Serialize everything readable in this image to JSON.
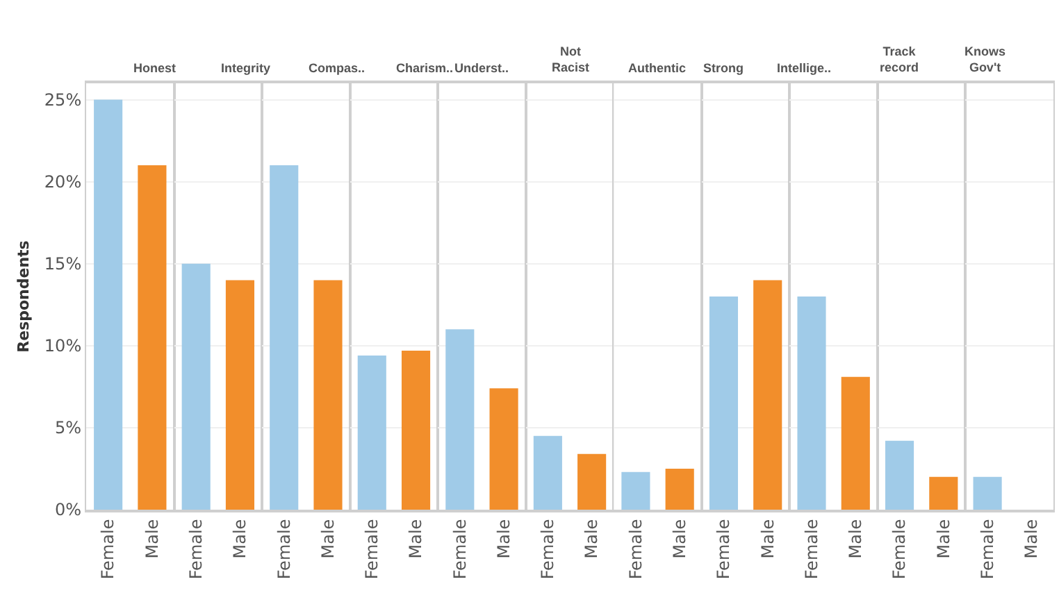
{
  "chart_data": [
    {
      "type": "bar",
      "title": "Honest",
      "ylabel": "Respondents",
      "categories": [
        "Female",
        "Male"
      ],
      "values": [
        25,
        21
      ],
      "colors": [
        "#a0cbe8",
        "#f28e2b"
      ],
      "ylim": [
        0,
        26
      ],
      "yticks": [
        {
          "value": 0,
          "label": "0%"
        },
        {
          "value": 5,
          "label": "5%"
        },
        {
          "value": 10,
          "label": "10%"
        },
        {
          "value": 15,
          "label": "15%"
        },
        {
          "value": 20,
          "label": "20%"
        },
        {
          "value": 25,
          "label": "25%"
        }
      ],
      "grid": "y"
    },
    {
      "type": "bar",
      "title": "Integrity",
      "categories": [
        "Female",
        "Male"
      ],
      "values": [
        15,
        14
      ],
      "colors": [
        "#a0cbe8",
        "#f28e2b"
      ],
      "ylim": [
        0,
        26
      ],
      "yticks": [
        0,
        5,
        10,
        15,
        20,
        25
      ],
      "grid": "y",
      "tick_labels": "x"
    },
    {
      "type": "bar",
      "title": "Compas..",
      "categories": [
        "Female",
        "Male"
      ],
      "values": [
        21,
        14
      ],
      "colors": [
        "#a0cbe8",
        "#f28e2b"
      ],
      "ylim": [
        0,
        26
      ],
      "yticks": [
        0,
        5,
        10,
        15,
        20,
        25
      ],
      "grid": "y",
      "tick_labels": "x"
    },
    {
      "type": "bar",
      "title": "Charism..",
      "categories": [
        "Female",
        "Male"
      ],
      "values": [
        9.4,
        9.7
      ],
      "colors": [
        "#a0cbe8",
        "#f28e2b"
      ],
      "ylim": [
        0,
        26
      ],
      "yticks": [
        0,
        5,
        10,
        15,
        20,
        25
      ],
      "grid": "y",
      "tick_labels": "x"
    },
    {
      "type": "bar",
      "title": "Underst..",
      "categories": [
        "Female",
        "Male"
      ],
      "values": [
        11,
        7.4
      ],
      "colors": [
        "#a0cbe8",
        "#f28e2b"
      ],
      "ylim": [
        0,
        26
      ],
      "yticks": [
        0,
        5,
        10,
        15,
        20,
        25
      ],
      "grid": "y",
      "tick_labels": "x"
    },
    {
      "type": "bar",
      "title": "Not\nRacist",
      "categories": [
        "Female",
        "Male"
      ],
      "values": [
        4.5,
        3.4
      ],
      "colors": [
        "#a0cbe8",
        "#f28e2b"
      ],
      "ylim": [
        0,
        26
      ],
      "yticks": [
        0,
        5,
        10,
        15,
        20,
        25
      ],
      "grid": "y",
      "tick_labels": "x"
    },
    {
      "type": "bar",
      "title": "Authentic",
      "categories": [
        "Female",
        "Male"
      ],
      "values": [
        2.3,
        2.5
      ],
      "colors": [
        "#a0cbe8",
        "#f28e2b"
      ],
      "ylim": [
        0,
        26
      ],
      "yticks": [
        0,
        5,
        10,
        15,
        20,
        25
      ],
      "grid": "y",
      "tick_labels": "x"
    },
    {
      "type": "bar",
      "title": "Strong",
      "categories": [
        "Female",
        "Male"
      ],
      "values": [
        13,
        14
      ],
      "colors": [
        "#a0cbe8",
        "#f28e2b"
      ],
      "ylim": [
        0,
        26
      ],
      "yticks": [
        0,
        5,
        10,
        15,
        20,
        25
      ],
      "grid": "y",
      "tick_labels": "x"
    },
    {
      "type": "bar",
      "title": "Intellige..",
      "categories": [
        "Female",
        "Male"
      ],
      "values": [
        13,
        8.1
      ],
      "colors": [
        "#a0cbe8",
        "#f28e2b"
      ],
      "ylim": [
        0,
        26
      ],
      "yticks": [
        0,
        5,
        10,
        15,
        20,
        25
      ],
      "grid": "y",
      "tick_labels": "x"
    },
    {
      "type": "bar",
      "title": "Track\nrecord",
      "categories": [
        "Female",
        "Male"
      ],
      "values": [
        4.2,
        2.0
      ],
      "colors": [
        "#a0cbe8",
        "#f28e2b"
      ],
      "ylim": [
        0,
        26
      ],
      "yticks": [
        0,
        5,
        10,
        15,
        20,
        25
      ],
      "grid": "y",
      "tick_labels": "x"
    },
    {
      "type": "bar",
      "title": "Knows\nGov't",
      "categories": [
        "Female",
        "Male"
      ],
      "values": [
        2.0,
        null
      ],
      "colors": [
        "#a0cbe8",
        "#f28e2b"
      ],
      "ylim": [
        0,
        26
      ],
      "yticks": [
        0,
        5,
        10,
        15,
        20,
        25
      ],
      "grid": "y",
      "tick_labels": "x"
    }
  ]
}
